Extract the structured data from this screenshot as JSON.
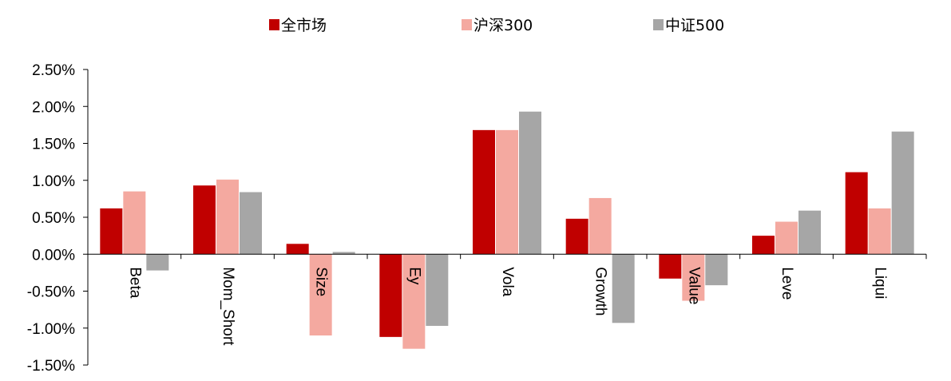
{
  "chart_data": {
    "type": "bar",
    "categories": [
      "Beta",
      "Mom_Short",
      "Size",
      "Ey",
      "Vola",
      "Growth",
      "Value",
      "Leve",
      "Liqui"
    ],
    "series": [
      {
        "name": "全市场",
        "color": "#C00000",
        "values": [
          0.62,
          0.93,
          0.14,
          -1.12,
          1.68,
          0.48,
          -0.33,
          0.25,
          1.11
        ]
      },
      {
        "name": "沪深300",
        "color": "#F4A9A0",
        "values": [
          0.85,
          1.01,
          -1.1,
          -1.28,
          1.68,
          0.76,
          -0.63,
          0.44,
          0.62
        ]
      },
      {
        "name": "中证500",
        "color": "#A6A6A6",
        "values": [
          -0.22,
          0.84,
          0.03,
          -0.97,
          1.93,
          -0.93,
          -0.42,
          0.59,
          1.66
        ]
      }
    ],
    "y_ticks": [
      "2.50%",
      "2.00%",
      "1.50%",
      "1.00%",
      "0.50%",
      "0.00%",
      "-0.50%",
      "-1.00%",
      "-1.50%"
    ],
    "ylim": [
      -1.5,
      2.5
    ],
    "y_unit": "%",
    "legend_position": "top-center",
    "grid": false
  }
}
